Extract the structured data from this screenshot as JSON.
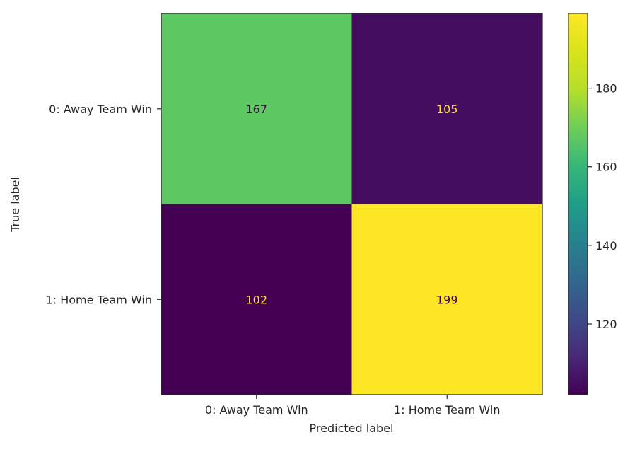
{
  "chart_data": {
    "type": "heatmap",
    "title": "",
    "xlabel": "Predicted label",
    "ylabel": "True label",
    "x_categories": [
      "0: Away Team Win",
      "1: Home Team Win"
    ],
    "y_categories": [
      "0: Away Team Win",
      "1: Home Team Win"
    ],
    "values": [
      [
        167,
        105
      ],
      [
        102,
        199
      ]
    ],
    "colormap": "viridis",
    "colorbar": {
      "range": [
        102,
        199
      ],
      "ticks": [
        120,
        140,
        160,
        180
      ]
    },
    "grid": false
  },
  "colors": {
    "dark_cell_text": "#fde725",
    "light_cell_text": "#440154",
    "axis_text": "#262626"
  }
}
